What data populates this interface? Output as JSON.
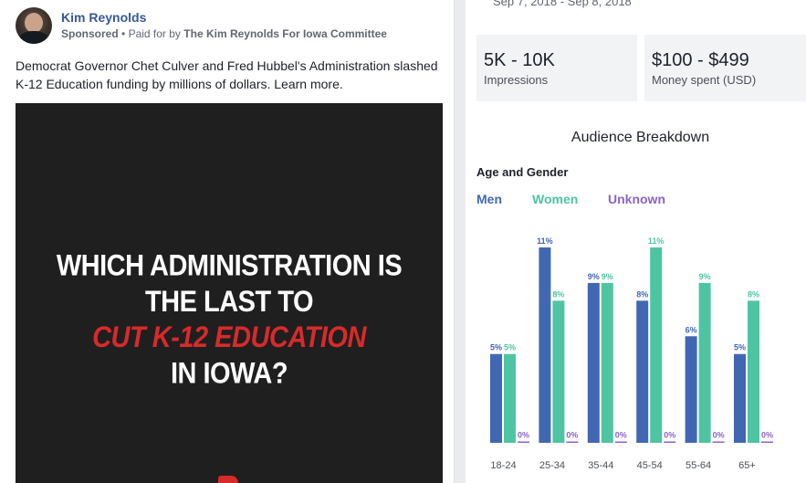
{
  "post": {
    "page_name": "Kim Reynolds",
    "sponsored": "Sponsored",
    "separator": "•",
    "paid_for_prefix": "Paid for by",
    "paid_for_by": "The Kim Reynolds For Iowa Committee",
    "body": "Democrat Governor Chet Culver and Fred Hubbel's Administration slashed K-12 Education funding by millions of dollars. Learn more.",
    "image_headline": {
      "line1": "WHICH ADMINISTRATION IS",
      "line2": "THE LAST TO",
      "line3": "CUT K-12 EDUCATION",
      "line4": "IN IOWA?"
    }
  },
  "insights": {
    "date_range": "Sep 7, 2018 - Sep 8, 2018",
    "impressions_value": "5K - 10K",
    "impressions_label": "Impressions",
    "spend_value": "$100 - $499",
    "spend_label": "Money spent (USD)",
    "breakdown_title": "Audience Breakdown",
    "section_label": "Age and Gender",
    "legend": {
      "men": "Men",
      "women": "Women",
      "unknown": "Unknown"
    }
  },
  "colors": {
    "men": "#4267b2",
    "women": "#4ec4a3",
    "unknown": "#8c63c9",
    "headline_red": "#d82a2a"
  },
  "chart_data": {
    "type": "bar",
    "categories": [
      "18-24",
      "25-34",
      "35-44",
      "45-54",
      "55-64",
      "65+"
    ],
    "series": [
      {
        "name": "Men",
        "values": [
          5,
          11,
          9,
          8,
          6,
          5
        ]
      },
      {
        "name": "Women",
        "values": [
          5,
          8,
          9,
          11,
          9,
          8
        ]
      },
      {
        "name": "Unknown",
        "values": [
          0,
          0,
          0,
          0,
          0,
          0
        ]
      }
    ],
    "value_suffix": "%",
    "ylim": [
      0,
      11
    ],
    "grid": false
  }
}
